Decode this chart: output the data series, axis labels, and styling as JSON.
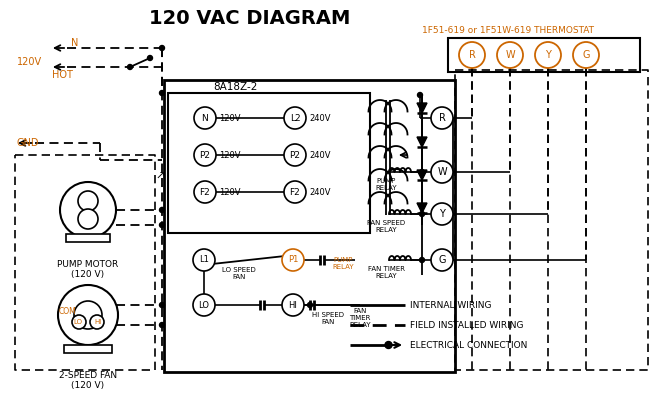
{
  "title": "120 VAC DIAGRAM",
  "title_fontsize": 14,
  "bg_color": "#ffffff",
  "text_color": "#000000",
  "orange_color": "#cc6600",
  "thermostat_label": "1F51-619 or 1F51W-619 THERMOSTAT",
  "box_label": "8A18Z-2",
  "terminal_labels_thermo": [
    "R",
    "W",
    "Y",
    "G"
  ],
  "left_terminals": [
    "N",
    "P2",
    "F2"
  ],
  "right_terminals": [
    "L2",
    "P2",
    "F2"
  ],
  "left_voltages": [
    "120V",
    "120V",
    "120V"
  ],
  "right_voltages": [
    "240V",
    "240V",
    "240V"
  ],
  "pump_motor_label": "PUMP MOTOR\n(120 V)",
  "fan_label": "2-SPEED FAN\n(120 V)"
}
